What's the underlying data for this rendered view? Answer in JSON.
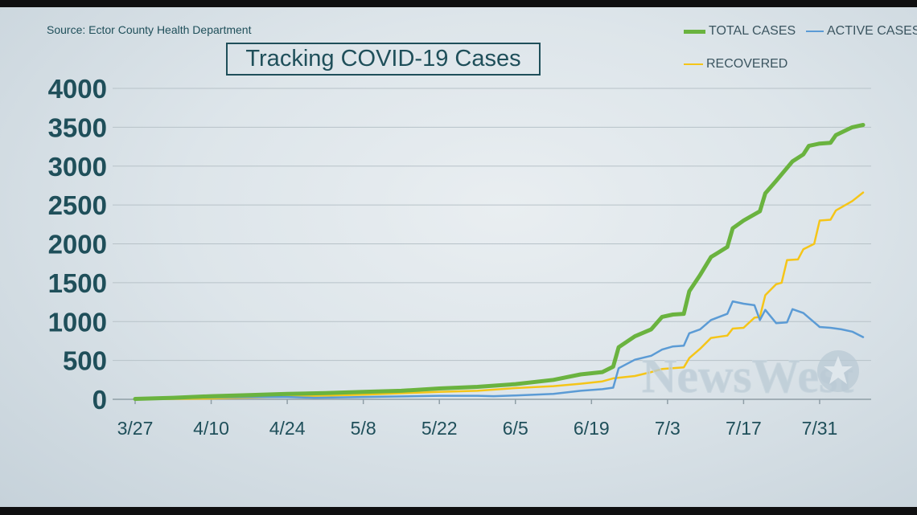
{
  "source_text": "Source: Ector County Health Department",
  "chart_data": {
    "type": "line",
    "title": "Tracking COVID-19 Cases",
    "xlabel": "",
    "ylabel": "",
    "ylim": [
      0,
      4000
    ],
    "yticks": [
      "0",
      "500",
      "1000",
      "1500",
      "2000",
      "2500",
      "3000",
      "3500",
      "4000"
    ],
    "xticks": [
      "3/27",
      "4/10",
      "4/24",
      "5/8",
      "5/22",
      "6/5",
      "6/19",
      "7/3",
      "7/17",
      "7/31"
    ],
    "xlim": [
      "3/27",
      "8/8"
    ],
    "grid": true,
    "legend_position": "top-right",
    "series": [
      {
        "name": "TOTAL CASES",
        "color": "#6ab33f",
        "points": [
          [
            "3/27",
            5
          ],
          [
            "4/3",
            20
          ],
          [
            "4/10",
            40
          ],
          [
            "4/17",
            55
          ],
          [
            "4/24",
            70
          ],
          [
            "5/1",
            80
          ],
          [
            "5/8",
            95
          ],
          [
            "5/15",
            110
          ],
          [
            "5/22",
            140
          ],
          [
            "5/29",
            160
          ],
          [
            "6/5",
            195
          ],
          [
            "6/12",
            250
          ],
          [
            "6/17",
            320
          ],
          [
            "6/21",
            350
          ],
          [
            "6/23",
            420
          ],
          [
            "6/24",
            670
          ],
          [
            "6/27",
            810
          ],
          [
            "6/30",
            900
          ],
          [
            "7/2",
            1060
          ],
          [
            "7/4",
            1090
          ],
          [
            "7/6",
            1100
          ],
          [
            "7/7",
            1390
          ],
          [
            "7/9",
            1600
          ],
          [
            "7/11",
            1830
          ],
          [
            "7/14",
            1960
          ],
          [
            "7/15",
            2200
          ],
          [
            "7/17",
            2300
          ],
          [
            "7/20",
            2420
          ],
          [
            "7/21",
            2650
          ],
          [
            "7/23",
            2810
          ],
          [
            "7/26",
            3060
          ],
          [
            "7/28",
            3150
          ],
          [
            "7/29",
            3260
          ],
          [
            "7/31",
            3290
          ],
          [
            "8/2",
            3300
          ],
          [
            "8/3",
            3400
          ],
          [
            "8/6",
            3500
          ],
          [
            "8/8",
            3530
          ]
        ]
      },
      {
        "name": "ACTIVE CASES",
        "color": "#5b9bd5",
        "points": [
          [
            "3/27",
            5
          ],
          [
            "4/3",
            15
          ],
          [
            "4/10",
            25
          ],
          [
            "4/17",
            30
          ],
          [
            "4/24",
            30
          ],
          [
            "4/29",
            20
          ],
          [
            "5/8",
            30
          ],
          [
            "5/22",
            45
          ],
          [
            "5/29",
            45
          ],
          [
            "6/1",
            40
          ],
          [
            "6/5",
            50
          ],
          [
            "6/12",
            70
          ],
          [
            "6/17",
            110
          ],
          [
            "6/21",
            130
          ],
          [
            "6/23",
            150
          ],
          [
            "6/24",
            400
          ],
          [
            "6/27",
            510
          ],
          [
            "6/30",
            560
          ],
          [
            "7/2",
            640
          ],
          [
            "7/4",
            680
          ],
          [
            "7/6",
            690
          ],
          [
            "7/7",
            850
          ],
          [
            "7/9",
            900
          ],
          [
            "7/11",
            1020
          ],
          [
            "7/14",
            1100
          ],
          [
            "7/15",
            1260
          ],
          [
            "7/17",
            1230
          ],
          [
            "7/19",
            1210
          ],
          [
            "7/20",
            1020
          ],
          [
            "7/21",
            1150
          ],
          [
            "7/23",
            980
          ],
          [
            "7/25",
            990
          ],
          [
            "7/26",
            1160
          ],
          [
            "7/28",
            1110
          ],
          [
            "7/29",
            1050
          ],
          [
            "7/31",
            930
          ],
          [
            "8/2",
            920
          ],
          [
            "8/4",
            900
          ],
          [
            "8/6",
            870
          ],
          [
            "8/8",
            800
          ]
        ]
      },
      {
        "name": "RECOVERED",
        "color": "#f5c518",
        "points": [
          [
            "3/27",
            0
          ],
          [
            "4/10",
            10
          ],
          [
            "4/24",
            35
          ],
          [
            "5/8",
            60
          ],
          [
            "5/22",
            95
          ],
          [
            "5/29",
            110
          ],
          [
            "6/5",
            145
          ],
          [
            "6/12",
            170
          ],
          [
            "6/17",
            200
          ],
          [
            "6/21",
            230
          ],
          [
            "6/23",
            270
          ],
          [
            "6/27",
            300
          ],
          [
            "6/30",
            350
          ],
          [
            "7/2",
            390
          ],
          [
            "7/4",
            400
          ],
          [
            "7/6",
            410
          ],
          [
            "7/7",
            530
          ],
          [
            "7/9",
            650
          ],
          [
            "7/11",
            790
          ],
          [
            "7/14",
            820
          ],
          [
            "7/15",
            910
          ],
          [
            "7/17",
            920
          ],
          [
            "7/19",
            1050
          ],
          [
            "7/20",
            1060
          ],
          [
            "7/21",
            1340
          ],
          [
            "7/23",
            1480
          ],
          [
            "7/24",
            1500
          ],
          [
            "7/25",
            1790
          ],
          [
            "7/27",
            1800
          ],
          [
            "7/28",
            1930
          ],
          [
            "7/30",
            2000
          ],
          [
            "7/31",
            2300
          ],
          [
            "8/2",
            2310
          ],
          [
            "8/3",
            2430
          ],
          [
            "8/6",
            2550
          ],
          [
            "8/8",
            2660
          ]
        ]
      }
    ]
  },
  "watermark_text": "NewsWest",
  "colors": {
    "axis_text": "#1f4f5a",
    "grid": "#b7c2c8",
    "background": "#e3eaee"
  }
}
